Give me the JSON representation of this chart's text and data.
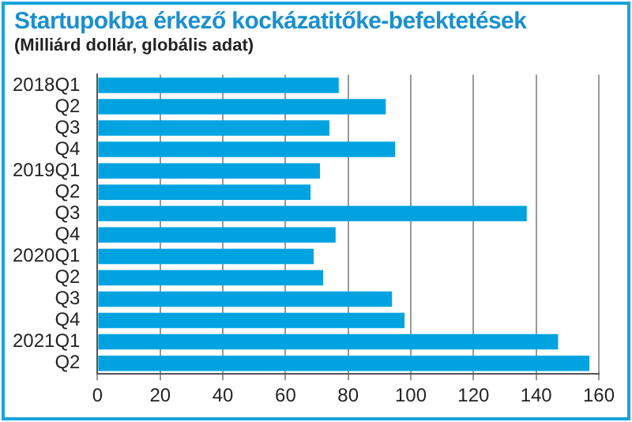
{
  "chart_data": {
    "type": "bar",
    "orientation": "horizontal",
    "title": "Startupokba érkező kockázatitőke-befektetések",
    "subtitle": "(Milliárd dollár, globális adat)",
    "categories": [
      "2018Q1",
      "Q2",
      "Q3",
      "Q4",
      "2019Q1",
      "Q2",
      "Q3",
      "Q4",
      "2020Q1",
      "Q2",
      "Q3",
      "Q4",
      "2021Q1",
      "Q2"
    ],
    "values": [
      77,
      92,
      74,
      95,
      71,
      68,
      137,
      76,
      69,
      72,
      94,
      98,
      147,
      157
    ],
    "color": "#00a3e0",
    "xlim": [
      0,
      160
    ],
    "xticks": [
      0,
      20,
      40,
      60,
      80,
      100,
      120,
      140,
      160
    ],
    "grid": "x",
    "legend": false
  }
}
